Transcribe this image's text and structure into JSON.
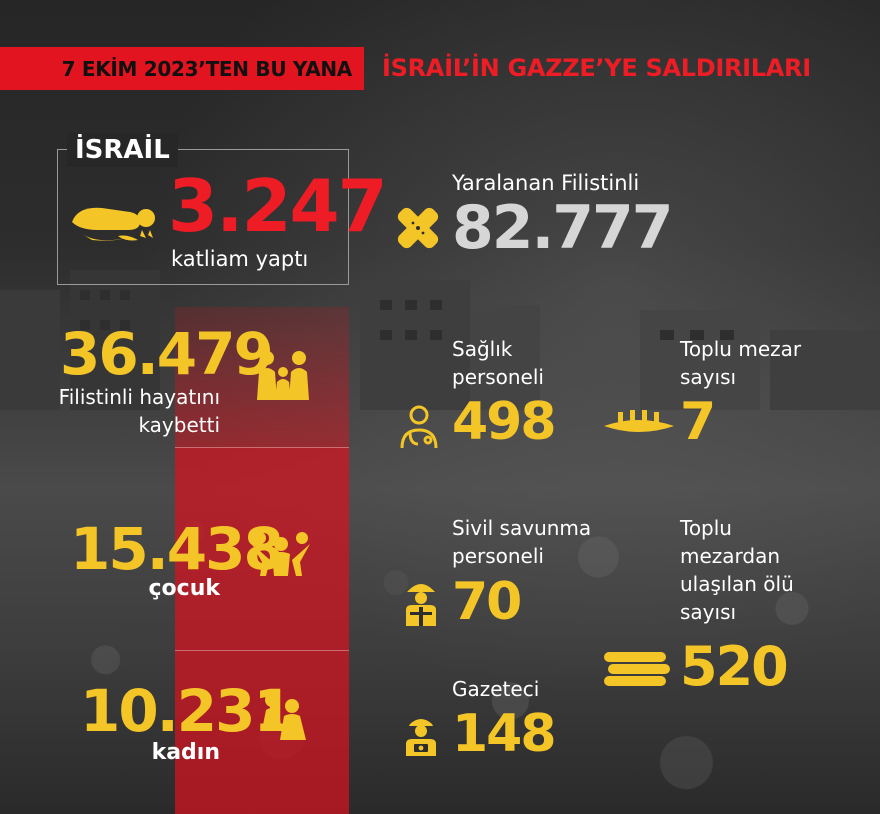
{
  "header": {
    "date_label": "7 EKİM 2023’TEN BU YANA",
    "title": "İSRAİL’İN GAZZE’YE SALDIRILARI"
  },
  "israel": {
    "label": "İSRAİL",
    "massacres_value": "3.247",
    "massacres_label": "katliam yaptı"
  },
  "left_stats": [
    {
      "value": "36.479",
      "label_line1": "Filistinli hayatını",
      "label_line2": "kaybetti",
      "icon": "family-icon"
    },
    {
      "value": "15.438",
      "label_line1": "çocuk",
      "icon": "children-icon"
    },
    {
      "value": "10.231",
      "label_line1": "kadın",
      "icon": "women-icon"
    }
  ],
  "right_stats": {
    "wounded": {
      "label": "Yaralanan Filistinli",
      "value": "82.777",
      "icon": "bandage-icon"
    },
    "health_staff": {
      "label_line1": "Sağlık",
      "label_line2": "personeli",
      "value": "498",
      "icon": "doctor-icon"
    },
    "mass_graves": {
      "label_line1": "Toplu mezar",
      "label_line2": "sayısı",
      "value": "7",
      "icon": "mass-grave-icon"
    },
    "civil_defense": {
      "label_line1": "Sivil savunma",
      "label_line2": "personeli",
      "value": "70",
      "icon": "firefighter-icon"
    },
    "grave_bodies": {
      "label_line1": "Toplu",
      "label_line2": "mezardan",
      "label_line3": "ulaşılan ölü",
      "label_line4": "sayısı",
      "value": "520",
      "icon": "body-bags-icon"
    },
    "journalists": {
      "label": "Gazeteci",
      "value": "148",
      "icon": "journalist-icon"
    }
  },
  "colors": {
    "accent_red": "#ee1c25",
    "accent_yellow": "#f4c527",
    "background": "#2d2d2d"
  }
}
